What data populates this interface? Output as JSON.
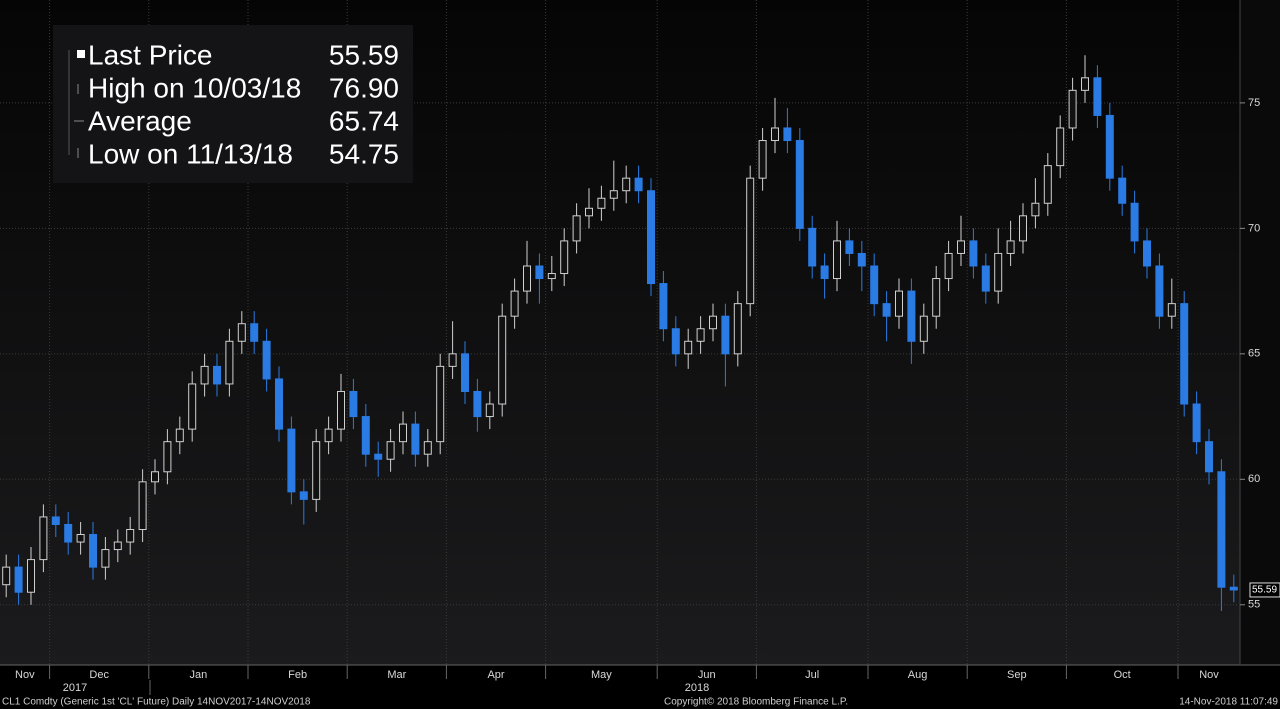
{
  "chart_data": {
    "type": "candlestick",
    "categories": [
      "Nov",
      null,
      null,
      null,
      "Dec",
      null,
      null,
      null,
      null,
      null,
      null,
      null,
      "Jan",
      null,
      null,
      null,
      null,
      null,
      null,
      null,
      "Feb",
      null,
      null,
      null,
      null,
      null,
      null,
      null,
      "Mar",
      null,
      null,
      null,
      null,
      null,
      null,
      null,
      "Apr",
      null,
      null,
      null,
      null,
      null,
      null,
      null,
      "May",
      null,
      null,
      null,
      null,
      null,
      null,
      null,
      null,
      "Jun",
      null,
      null,
      null,
      null,
      null,
      null,
      null,
      "Jul",
      null,
      null,
      null,
      null,
      null,
      null,
      null,
      null,
      "Aug",
      null,
      null,
      null,
      null,
      null,
      null,
      null,
      "Sep",
      null,
      null,
      null,
      null,
      null,
      null,
      null,
      "Oct",
      null,
      null,
      null,
      null,
      null,
      null,
      null,
      null,
      "Nov",
      null,
      null,
      null,
      null
    ],
    "open": [
      55.8,
      56.5,
      55.5,
      56.8,
      58.5,
      58.2,
      57.5,
      57.8,
      56.5,
      57.2,
      57.5,
      58,
      59.9,
      60.3,
      61.5,
      62,
      63.8,
      64.5,
      63.8,
      65.5,
      66.2,
      65.5,
      64,
      62,
      59.5,
      59.2,
      61.5,
      62,
      63.5,
      62.5,
      61,
      60.8,
      61.5,
      62.2,
      61,
      61.5,
      64.5,
      65,
      63.5,
      62.5,
      63,
      66.5,
      67.5,
      68.5,
      68,
      68.2,
      69.5,
      70.5,
      70.8,
      71.2,
      71.5,
      72,
      71.5,
      67.8,
      66,
      65,
      65.5,
      66,
      66.5,
      65,
      67,
      72,
      73.5,
      74,
      73.5,
      70,
      68.5,
      68,
      69.5,
      69,
      68.5,
      67,
      66.5,
      67.5,
      65.5,
      66.5,
      68,
      69,
      69.5,
      68.5,
      67.5,
      69,
      69.5,
      70.5,
      71,
      72.5,
      74,
      75.5,
      76,
      74.5,
      72,
      71,
      69.5,
      68.5,
      66.5,
      67,
      63,
      61.5,
      60.3,
      55.7
    ],
    "high": [
      57,
      57,
      57.3,
      59,
      59,
      58.7,
      58.3,
      58.3,
      57.7,
      58,
      58.5,
      60.4,
      60.8,
      62,
      62.5,
      64.3,
      65,
      65,
      66,
      66.7,
      66.7,
      66,
      64.5,
      62.5,
      60,
      62,
      62.5,
      64.2,
      64,
      63,
      61.5,
      62,
      62.7,
      62.7,
      62,
      65,
      66.3,
      65.5,
      64,
      63.5,
      67,
      68,
      69.5,
      69,
      68.9,
      70,
      71,
      71.6,
      71.7,
      72.7,
      72.5,
      72.5,
      72,
      68.3,
      66.5,
      66,
      66.5,
      67,
      67,
      67.5,
      72.5,
      74,
      75.2,
      74.8,
      74,
      70.5,
      69,
      70.3,
      70,
      69.5,
      69,
      67.5,
      68,
      68,
      67,
      68.5,
      69.5,
      70.5,
      70,
      69,
      70,
      70.3,
      71,
      72,
      73,
      74.5,
      76,
      76.9,
      76.5,
      75,
      72.5,
      71.5,
      70,
      69,
      68,
      67.5,
      63.5,
      62,
      60.8,
      56.2
    ],
    "low": [
      55.3,
      55,
      55,
      56.3,
      57.7,
      57,
      57,
      56,
      56,
      56.7,
      57,
      57.5,
      59.4,
      59.8,
      61,
      61.5,
      63.3,
      63.3,
      63.3,
      65,
      65,
      63.5,
      61.5,
      59,
      58.2,
      58.7,
      61,
      61.5,
      62,
      60.5,
      60.1,
      60.3,
      61,
      60.5,
      60.5,
      61,
      64,
      63,
      61.9,
      62,
      62.5,
      66,
      67,
      67,
      67.5,
      67.7,
      69,
      70,
      70.3,
      70.7,
      71,
      71,
      67.3,
      65.5,
      64.5,
      64.4,
      65,
      65.5,
      63.7,
      64.5,
      66.5,
      71.5,
      73,
      73,
      69.5,
      68,
      67.2,
      67.5,
      68.5,
      67.5,
      66.5,
      65.5,
      66,
      64.6,
      65,
      66,
      67.5,
      68.5,
      68,
      67,
      67,
      68.5,
      69,
      70,
      70.5,
      72,
      73.5,
      75,
      74,
      71.5,
      70.5,
      69,
      68,
      66,
      66,
      62.5,
      61,
      59.8,
      54.75,
      55.1
    ],
    "close": [
      56.5,
      55.5,
      56.8,
      58.5,
      58.2,
      57.5,
      57.8,
      56.5,
      57.2,
      57.5,
      58,
      59.9,
      60.3,
      61.5,
      62,
      63.8,
      64.5,
      63.8,
      65.5,
      66.2,
      65.5,
      64,
      62,
      59.5,
      59.2,
      61.5,
      62,
      63.5,
      62.5,
      61,
      60.8,
      61.5,
      62.2,
      61,
      61.5,
      64.5,
      65,
      63.5,
      62.5,
      63,
      66.5,
      67.5,
      68.5,
      68,
      68.2,
      69.5,
      70.5,
      70.8,
      71.2,
      71.5,
      72,
      71.5,
      67.8,
      66,
      65,
      65.5,
      66,
      66.5,
      65,
      67,
      72,
      73.5,
      74,
      73.5,
      70,
      68.5,
      68,
      69.5,
      69,
      68.5,
      67,
      66.5,
      67.5,
      65.5,
      66.5,
      68,
      69,
      69.5,
      68.5,
      67.5,
      69,
      69.5,
      70.5,
      71,
      72.5,
      74,
      75.5,
      76,
      74.5,
      72,
      71,
      69.5,
      68.5,
      66.5,
      67,
      63,
      61.5,
      60.3,
      55.7,
      55.59
    ],
    "up_color": "#d0d0d0",
    "down_color": "#2a7be4",
    "ylim": [
      52.6,
      79.1
    ],
    "yticks": [
      55,
      60,
      65,
      70,
      75
    ],
    "grid": true,
    "year_labels": [
      "2017",
      "2018"
    ],
    "stats": {
      "labels": [
        "Last Price",
        "High on 10/03/18",
        "Average",
        "Low on 11/13/18"
      ],
      "values": [
        55.59,
        76.9,
        65.74,
        54.75
      ],
      "value_labels": [
        "55.59",
        "76.90",
        "65.74",
        "54.75"
      ]
    },
    "footer": {
      "left": "CL1 Comdty (Generic 1st 'CL' Future)  Daily 14NOV2017-14NOV2018",
      "center": "Copyright© 2018 Bloomberg Finance L.P.",
      "right": "14-Nov-2018 11:07:49"
    }
  }
}
